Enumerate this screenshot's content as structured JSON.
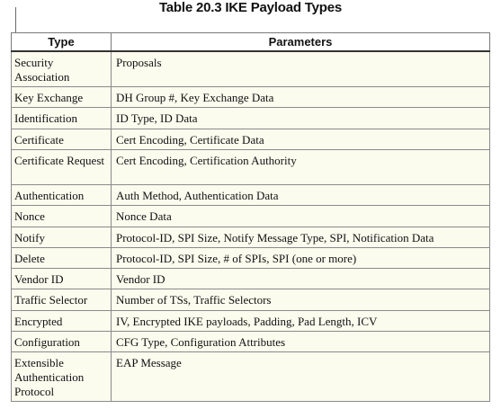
{
  "title": "Table 20.3  IKE Payload Types",
  "table": {
    "headers": [
      "Type",
      "Parameters"
    ],
    "rows": [
      {
        "type": "Security Association",
        "params": "Proposals"
      },
      {
        "type": "Key Exchange",
        "params": "DH Group #, Key Exchange Data"
      },
      {
        "type": "Identification",
        "params": "ID Type, ID Data"
      },
      {
        "type": "Certificate",
        "params": "Cert Encoding, Certificate Data"
      },
      {
        "type": "Certificate Request",
        "params": "Cert Encoding, Certification Authority"
      },
      {
        "type": "Authentication",
        "params": "Auth Method, Authentication Data"
      },
      {
        "type": "Nonce",
        "params": "Nonce Data"
      },
      {
        "type": "Notify",
        "params": "Protocol-ID, SPI Size, Notify Message Type, SPI, Notification Data"
      },
      {
        "type": "Delete",
        "params": "Protocol-ID, SPI Size, # of SPIs, SPI (one or more)"
      },
      {
        "type": "Vendor ID",
        "params": "Vendor ID"
      },
      {
        "type": "Traffic Selector",
        "params": "Number of TSs, Traffic Selectors"
      },
      {
        "type": "Encrypted",
        "params": "IV, Encrypted IKE payloads, Padding, Pad Length, ICV"
      },
      {
        "type": "Configuration",
        "params": "CFG Type, Configuration Attributes"
      },
      {
        "type": "Extensible Authentication Protocol",
        "params": "EAP Message"
      }
    ]
  }
}
